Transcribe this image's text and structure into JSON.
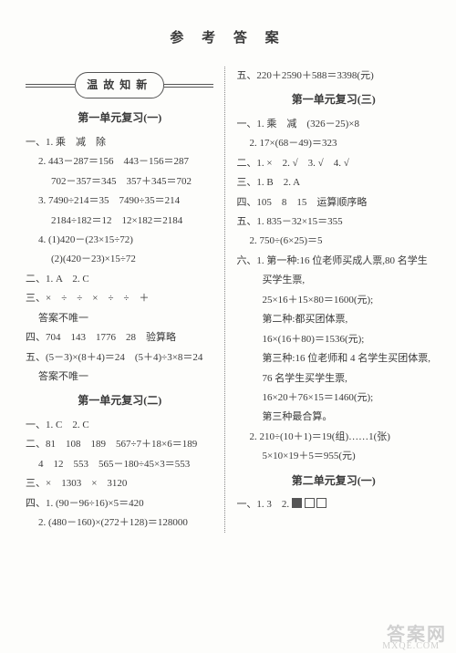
{
  "title": "参 考 答 案",
  "pillLabel": "温故知新",
  "left": {
    "s1": {
      "heading": "第一单元复习(一)"
    },
    "l": [
      "一、1. 乘　减　除",
      "2. 443－287＝156　443－156＝287",
      "702－357＝345　357＋345＝702",
      "3. 7490÷214＝35　7490÷35＝214",
      "2184÷182＝12　12×182＝2184",
      "4. (1)420－(23×15÷72)",
      "(2)(420－23)×15÷72",
      "二、1. A　2. C",
      "三、×　÷　÷　×　÷　÷　＋",
      "答案不唯一",
      "四、704　143　1776　28　验算略",
      "五、(5－3)×(8＋4)＝24　(5＋4)÷3×8＝24",
      "答案不唯一"
    ],
    "s2": {
      "heading": "第一单元复习(二)"
    },
    "m": [
      "一、1. C　2. C",
      "二、81　108　189　567÷7＋18×6＝189",
      "4　12　553　565－180÷45×3＝553",
      "三、×　1303　×　3120",
      "四、1. (90－96÷16)×5＝420",
      "2. (480－160)×(272＋128)＝128000"
    ]
  },
  "right": {
    "topLine": "五、220＋2590＋588＝3398(元)",
    "s3": {
      "heading": "第一单元复习(三)"
    },
    "r": [
      "一、1. 乘　减　(326－25)×8",
      "2. 17×(68－49)＝323",
      "二、1. ×　2. √　3. √　4. √",
      "三、1. B　2. A",
      "四、105　8　15　运算顺序略",
      "五、1. 835－32×15＝355",
      "2. 750÷(6×25)＝5",
      "六、1. 第一种:16 位老师买成人票,80 名学生",
      "买学生票,",
      "25×16＋15×80＝1600(元);",
      "第二种:都买团体票,",
      "16×(16＋80)＝1536(元);",
      "第三种:16 位老师和 4 名学生买团体票,",
      "76 名学生买学生票,",
      "16×20＋76×15＝1460(元);",
      "第三种最合算。",
      "2. 210÷(10＋1)＝19(组)……1(张)",
      "5×10×19＋5＝955(元)"
    ],
    "s4": {
      "heading": "第二单元复习(一)"
    },
    "bLine": "一、1. 3　2."
  },
  "wm": {
    "main": "答案网",
    "sub": "MXQE.COM"
  }
}
